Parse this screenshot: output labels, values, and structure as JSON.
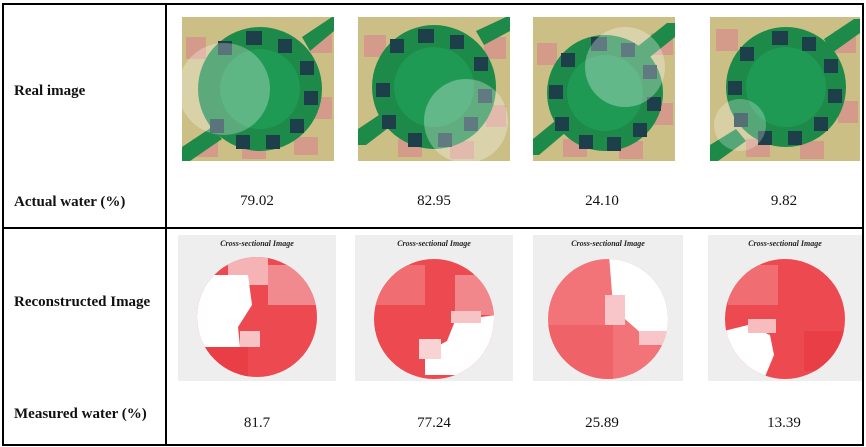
{
  "rows": {
    "real_image": "Real image",
    "actual_water": "Actual water (%)",
    "reconstructed_image": "Reconstructed Image",
    "measured_water": "Measured water (%)"
  },
  "caption": "Cross-sectional Image",
  "samples": [
    {
      "actual": "79.02",
      "measured": "81.7"
    },
    {
      "actual": "82.95",
      "measured": "77.24"
    },
    {
      "actual": "24.10",
      "measured": "25.89"
    },
    {
      "actual": "9.82",
      "measured": "13.39"
    }
  ],
  "colors": {
    "sensor_green": "#1e8a4a",
    "electrode": "#1d3f4a",
    "board": "#c9c08a",
    "water_red": "#e8333a"
  }
}
